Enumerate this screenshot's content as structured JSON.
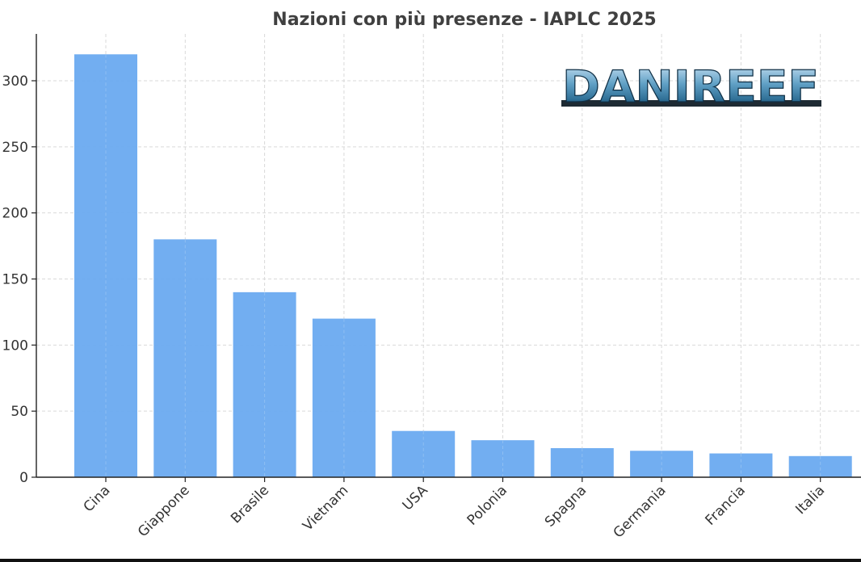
{
  "chart_data": {
    "type": "bar",
    "title": "Nazioni con più presenze - IAPLC 2025",
    "xlabel": "",
    "ylabel": "",
    "categories": [
      "Cina",
      "Giappone",
      "Brasile",
      "Vietnam",
      "USA",
      "Polonia",
      "Spagna",
      "Germania",
      "Francia",
      "Italia"
    ],
    "values": [
      320,
      180,
      140,
      120,
      35,
      28,
      22,
      20,
      18,
      16
    ],
    "ylim": [
      0,
      335
    ],
    "yticks": [
      0,
      50,
      100,
      150,
      200,
      250,
      300
    ],
    "grid": true,
    "legend": "none",
    "bar_color": "#6aaaf0"
  },
  "watermark": {
    "text": "DANIREEF",
    "colors": {
      "top": "#cfe6f7",
      "mid": "#2f6f96",
      "bottom": "#0f2f45"
    }
  }
}
